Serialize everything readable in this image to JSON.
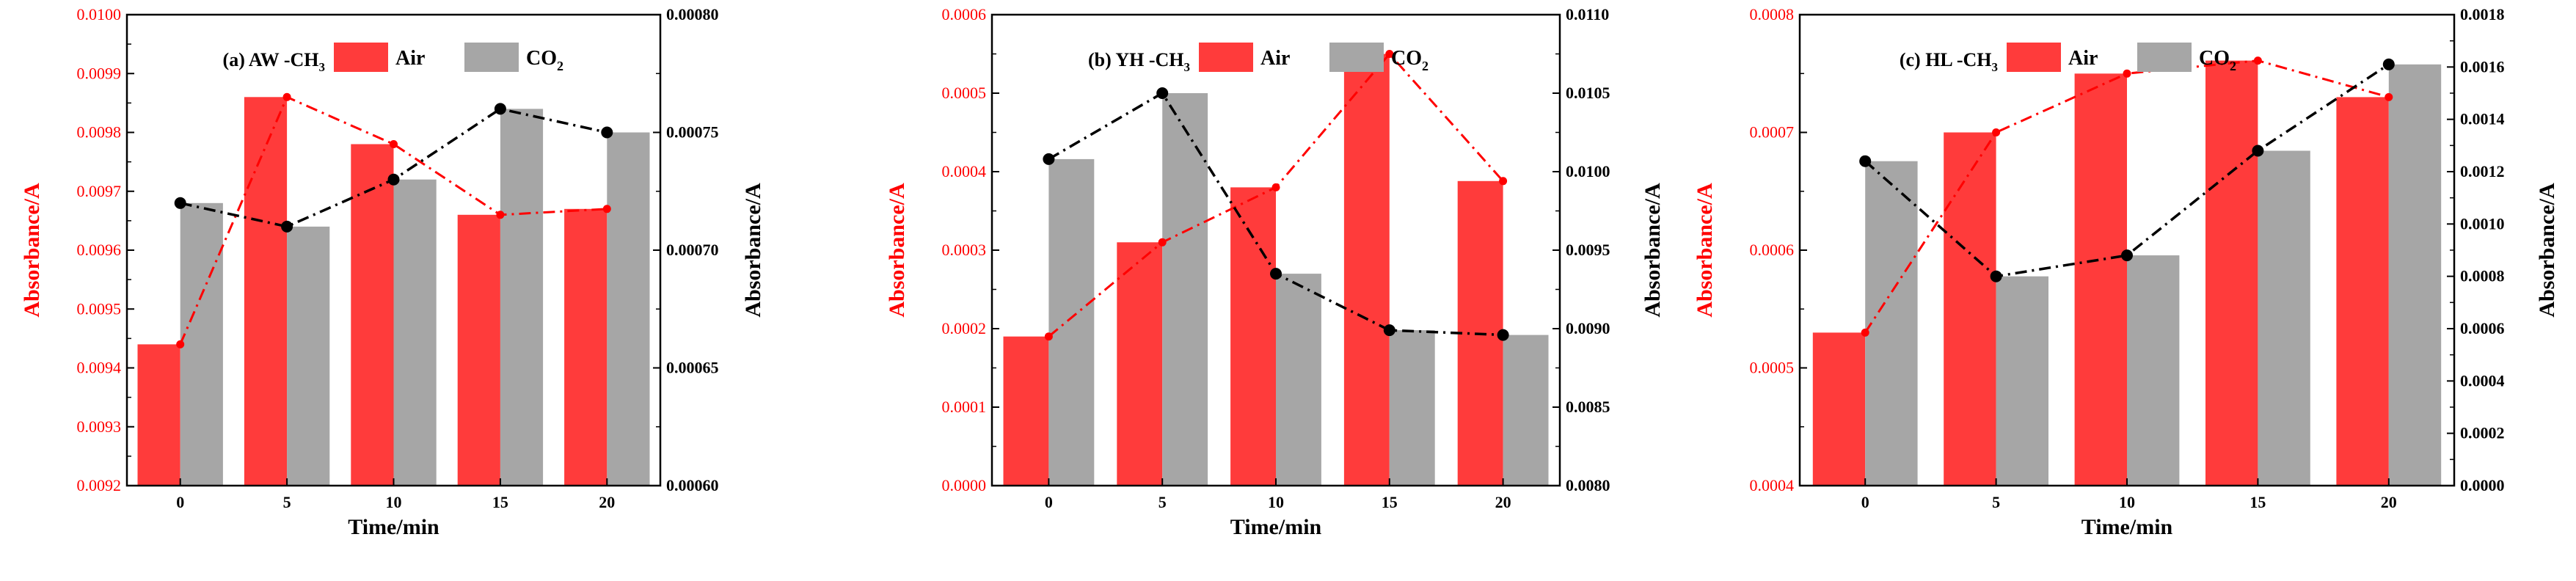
{
  "colors": {
    "air": "#ff3b3b",
    "co2": "#a6a6a6",
    "left_axis": "#ff0000",
    "right_axis": "#000000",
    "black": "#000000"
  },
  "chart_data": [
    {
      "type": "bar",
      "title": "(a) AW -CH3",
      "title_main": "(a) AW -CH",
      "title_sub": "3",
      "xlabel": "Time/min",
      "ylabel_left": "Absorbance/A",
      "ylabel_right": "Absorbance/A",
      "categories": [
        "0",
        "5",
        "10",
        "15",
        "20"
      ],
      "series": [
        {
          "name": "Air",
          "name_main": "Air",
          "name_sub": "",
          "axis": "left",
          "values": [
            0.00944,
            0.00986,
            0.00978,
            0.00966,
            0.00967
          ]
        },
        {
          "name": "CO2",
          "name_main": "CO",
          "name_sub": "2",
          "axis": "right",
          "values": [
            0.00072,
            0.00071,
            0.00073,
            0.00076,
            0.00075
          ]
        }
      ],
      "ylim_left": [
        0.0092,
        0.01
      ],
      "ylim_right": [
        0.0006,
        0.0008
      ],
      "yticks_left": [
        "0.0092",
        "0.0093",
        "0.0094",
        "0.0095",
        "0.0096",
        "0.0097",
        "0.0098",
        "0.0099",
        "0.0100"
      ],
      "yticks_right": [
        "0.00060",
        "0.00065",
        "0.00070",
        "0.00075",
        "0.00080"
      ]
    },
    {
      "type": "bar",
      "title": "(b) YH -CH3",
      "title_main": "(b) YH -CH",
      "title_sub": "3",
      "xlabel": "Time/min",
      "ylabel_left": "Absorbance/A",
      "ylabel_right": "Absorbance/A",
      "categories": [
        "0",
        "5",
        "10",
        "15",
        "20"
      ],
      "series": [
        {
          "name": "Air",
          "name_main": "Air",
          "name_sub": "",
          "axis": "left",
          "values": [
            0.00019,
            0.00031,
            0.00038,
            0.00055,
            0.000388
          ]
        },
        {
          "name": "CO2",
          "name_main": "CO",
          "name_sub": "2",
          "axis": "right",
          "values": [
            0.01008,
            0.0105,
            0.00935,
            0.00899,
            0.00896
          ]
        }
      ],
      "ylim_left": [
        0.0,
        0.0006
      ],
      "ylim_right": [
        0.008,
        0.011
      ],
      "yticks_left": [
        "0.0000",
        "0.0001",
        "0.0002",
        "0.0003",
        "0.0004",
        "0.0005",
        "0.0006"
      ],
      "yticks_right": [
        "0.0080",
        "0.0085",
        "0.0090",
        "0.0095",
        "0.0100",
        "0.0105",
        "0.0110"
      ]
    },
    {
      "type": "bar",
      "title": "(c) HL -CH3",
      "title_main": "(c) HL -CH",
      "title_sub": "3",
      "xlabel": "Time/min",
      "ylabel_left": "Absorbance/A",
      "ylabel_right": "Absorbance/A",
      "categories": [
        "0",
        "5",
        "10",
        "15",
        "20"
      ],
      "series": [
        {
          "name": "Air",
          "name_main": "Air",
          "name_sub": "",
          "axis": "left",
          "values": [
            0.00053,
            0.0007,
            0.00075,
            0.000761,
            0.00073
          ]
        },
        {
          "name": "CO2",
          "name_main": "CO",
          "name_sub": "2",
          "axis": "right",
          "values": [
            0.00124,
            0.0008,
            0.00088,
            0.00128,
            0.00161
          ]
        }
      ],
      "ylim_left": [
        0.0004,
        0.0008
      ],
      "ylim_right": [
        0.0,
        0.0018
      ],
      "yticks_left": [
        "0.0004",
        "0.0005",
        "0.0006",
        "0.0007",
        "0.0008"
      ],
      "yticks_right": [
        "0.0000",
        "0.0002",
        "0.0004",
        "0.0006",
        "0.0008",
        "0.0010",
        "0.0012",
        "0.0014",
        "0.0016",
        "0.0018"
      ]
    }
  ]
}
